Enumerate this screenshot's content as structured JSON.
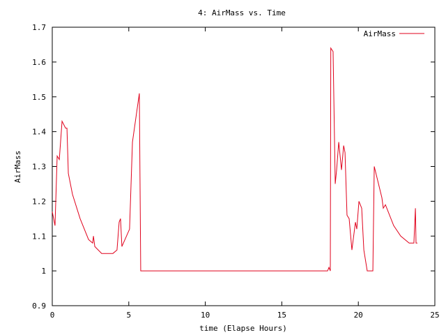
{
  "chart_data": {
    "type": "line",
    "title": "4: AirMass vs. Time",
    "x_label": "time (Elapse Hours)",
    "y_label": "AirMass",
    "xlim": [
      0,
      25
    ],
    "ylim": [
      0.9,
      1.7
    ],
    "xticks": [
      0,
      5,
      10,
      15,
      20,
      25
    ],
    "yticks": [
      0.9,
      1,
      1.1,
      1.2,
      1.3,
      1.4,
      1.5,
      1.6,
      1.7
    ],
    "legend": "top-right",
    "series": [
      {
        "name": "AirMass",
        "color": "#e0001b",
        "x": [
          0,
          0.18,
          0.32,
          0.46,
          0.64,
          0.87,
          0.96,
          1.05,
          1.32,
          1.82,
          2.37,
          2.64,
          2.69,
          2.78,
          3.23,
          3.55,
          3.96,
          4.23,
          4.37,
          4.46,
          4.55,
          5.05,
          5.24,
          5.69,
          5.78,
          17.99,
          18.08,
          18.17,
          18.2,
          18.35,
          18.49,
          18.58,
          18.72,
          18.9,
          19.04,
          19.13,
          19.26,
          19.4,
          19.58,
          19.81,
          19.9,
          20.04,
          20.22,
          20.36,
          20.58,
          20.95,
          21.04,
          21.54,
          21.63,
          21.77,
          22.31,
          22.77,
          23.32,
          23.63,
          23.73,
          23.77,
          23.86
        ],
        "values": [
          1.17,
          1.13,
          1.33,
          1.32,
          1.43,
          1.41,
          1.41,
          1.28,
          1.22,
          1.15,
          1.09,
          1.08,
          1.1,
          1.07,
          1.05,
          1.05,
          1.05,
          1.06,
          1.14,
          1.15,
          1.07,
          1.12,
          1.37,
          1.51,
          1,
          1,
          1.01,
          1,
          1.64,
          1.63,
          1.25,
          1.29,
          1.37,
          1.29,
          1.36,
          1.34,
          1.16,
          1.15,
          1.06,
          1.14,
          1.12,
          1.2,
          1.18,
          1.06,
          1,
          1,
          1.3,
          1.21,
          1.18,
          1.19,
          1.13,
          1.1,
          1.08,
          1.08,
          1.18,
          1.08,
          1.08
        ]
      }
    ]
  }
}
